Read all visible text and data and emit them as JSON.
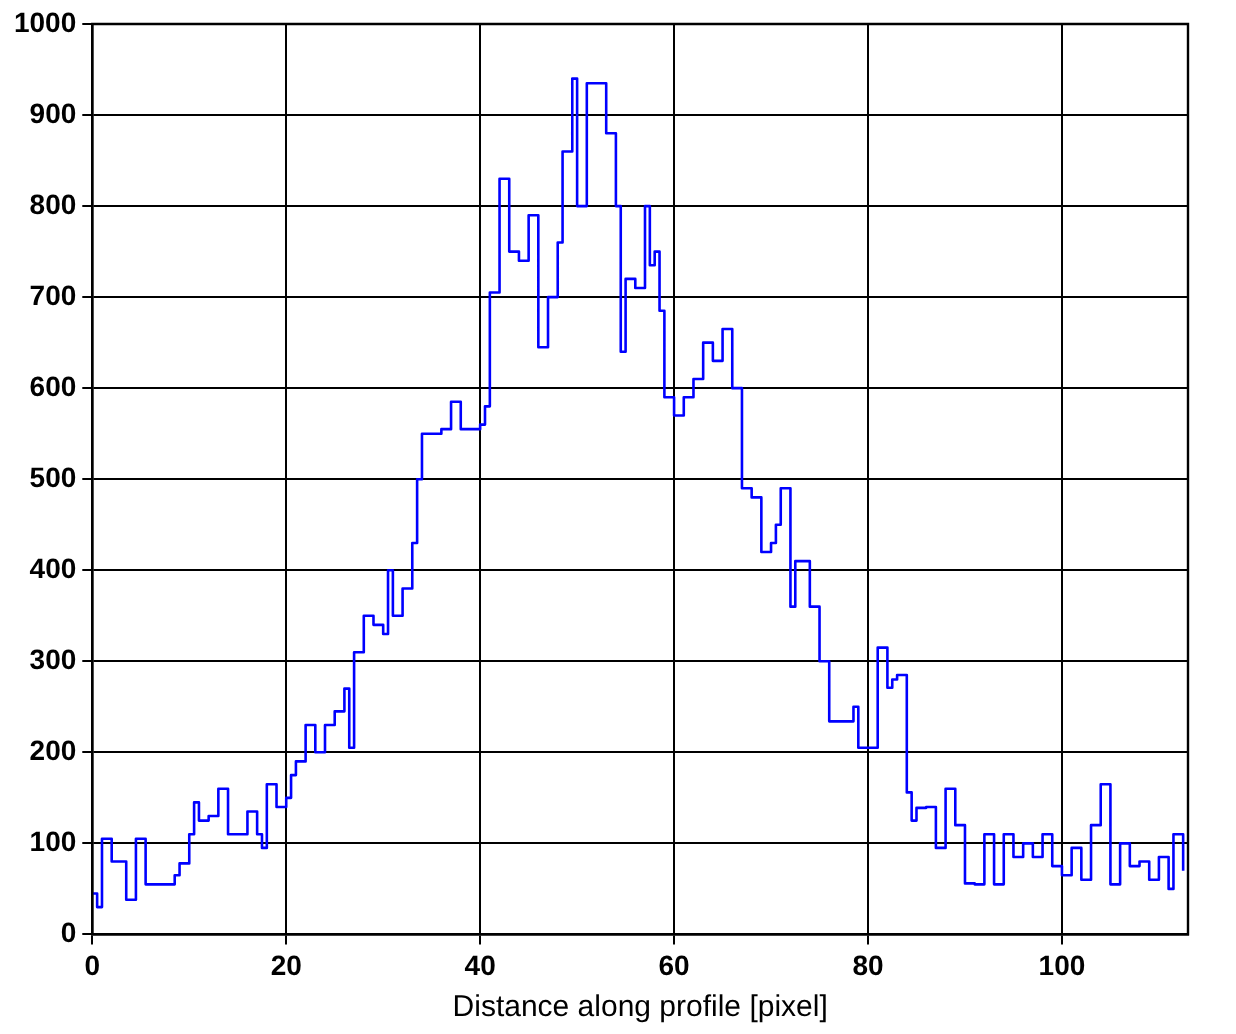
{
  "chart_data": {
    "type": "step",
    "xlabel": "Distance along profile [pixel]",
    "x": [
      0,
      0.5,
      1,
      2,
      3,
      3.5,
      4.5,
      5.5,
      8.5,
      9,
      10,
      10.5,
      11,
      12,
      13,
      14,
      15,
      16,
      17,
      17.5,
      18,
      19,
      20,
      20.5,
      21,
      22,
      23,
      24,
      25,
      26,
      26.5,
      27,
      28,
      29,
      30,
      30.5,
      31,
      32,
      33,
      33.5,
      34,
      35,
      36,
      37,
      38,
      39,
      40,
      40.5,
      41,
      42,
      43,
      44,
      45,
      46,
      47,
      48,
      48.5,
      49,
      49.5,
      50,
      51,
      52,
      53,
      54,
      54.5,
      55,
      56,
      57,
      57.5,
      58,
      58.5,
      59,
      60,
      61,
      62,
      63,
      64,
      65,
      66,
      67,
      68,
      69,
      70,
      70.5,
      71,
      72,
      72.5,
      74,
      75,
      76,
      77,
      78.5,
      79,
      80,
      81,
      82,
      82.5,
      83,
      84,
      84.5,
      85,
      86,
      87,
      88,
      89,
      90,
      91,
      92,
      93,
      94,
      95,
      96,
      97,
      98,
      99,
      100,
      101,
      102,
      103,
      104,
      105,
      106,
      107,
      108,
      109,
      110,
      111,
      111.5,
      112.5
    ],
    "values": [
      45,
      30,
      105,
      80,
      80,
      38,
      105,
      55,
      65,
      78,
      110,
      145,
      125,
      130,
      160,
      110,
      110,
      135,
      110,
      95,
      165,
      140,
      150,
      175,
      190,
      230,
      200,
      230,
      245,
      270,
      205,
      310,
      350,
      340,
      330,
      400,
      350,
      380,
      430,
      500,
      550,
      550,
      555,
      585,
      555,
      555,
      560,
      580,
      705,
      830,
      750,
      740,
      790,
      645,
      700,
      760,
      860,
      860,
      940,
      800,
      935,
      935,
      880,
      800,
      640,
      720,
      710,
      800,
      735,
      750,
      685,
      590,
      570,
      590,
      610,
      650,
      630,
      665,
      600,
      490,
      480,
      420,
      430,
      450,
      490,
      360,
      410,
      360,
      300,
      234,
      234,
      250,
      205,
      205,
      315,
      271,
      280,
      285,
      156,
      125,
      139,
      140,
      95,
      160,
      120,
      56,
      55,
      110,
      55,
      110,
      85,
      100,
      85,
      110,
      75,
      65,
      95,
      60,
      120,
      165,
      55,
      100,
      75,
      80,
      60,
      85,
      50,
      110,
      70
    ],
    "color": "#0000ff",
    "xlim": [
      0,
      113
    ],
    "ylim": [
      0,
      1000
    ],
    "xticks": [
      0,
      20,
      40,
      60,
      80,
      100
    ],
    "yticks": [
      0,
      100,
      200,
      300,
      400,
      500,
      600,
      700,
      800,
      900,
      1000
    ],
    "grid": true,
    "legend": false
  }
}
